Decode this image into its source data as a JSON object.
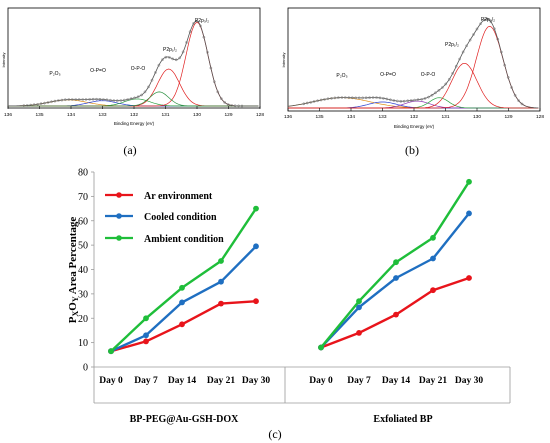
{
  "panels": {
    "a": {
      "label": "(a)",
      "xlabel": "Binding Energy (eV)",
      "ylabel": "Intensity",
      "xticks": [
        "136",
        "135",
        "134",
        "133",
        "132",
        "131",
        "130",
        "129",
        "128"
      ],
      "peak_labels": [
        "P₂O₅",
        "O-P=O",
        "O-P-O",
        "P2p₁/₂",
        "P2p₃/₂"
      ]
    },
    "b": {
      "label": "(b)",
      "xlabel": "Binding Energy (eV)",
      "ylabel": "Intensity",
      "xticks": [
        "136",
        "135",
        "134",
        "133",
        "132",
        "131",
        "130",
        "129",
        "128"
      ],
      "peak_labels": [
        "P₂O₅",
        "O-P=O",
        "O-P-O",
        "P2p₁/₂",
        "P2p₃/₂"
      ]
    },
    "c": {
      "label": "(c)"
    }
  },
  "chart_data": [
    {
      "type": "line",
      "title": "(c)",
      "ylabel": "PxOy Area Percentage",
      "ylim": [
        0,
        80
      ],
      "yticks": [
        "0",
        "10",
        "20",
        "30",
        "40",
        "50",
        "60",
        "70",
        "80"
      ],
      "categories": [
        "Day 0",
        "Day 7",
        "Day 14",
        "Day 21",
        "Day 30"
      ],
      "groups": [
        "BP-PEG@Au-GSH-DOX",
        "Exfoliated BP"
      ],
      "legend_position": "top-left",
      "grid": false,
      "colors": {
        "Ar environment": "#e8141b",
        "Cooled condition": "#1f6fc1",
        "Ambient condition": "#1fbe3a"
      },
      "series": [
        {
          "name": "Ar environment",
          "group": "BP-PEG@Au-GSH-DOX",
          "values": [
            6.5,
            10.5,
            17.5,
            26,
            27
          ]
        },
        {
          "name": "Cooled condition",
          "group": "BP-PEG@Au-GSH-DOX",
          "values": [
            6.5,
            13,
            26.5,
            35,
            49.5
          ]
        },
        {
          "name": "Ambient condition",
          "group": "BP-PEG@Au-GSH-DOX",
          "values": [
            6.5,
            20,
            32.5,
            43.5,
            65
          ]
        },
        {
          "name": "Ar environment",
          "group": "Exfoliated BP",
          "values": [
            8,
            14,
            21.5,
            31.5,
            36.5
          ]
        },
        {
          "name": "Cooled condition",
          "group": "Exfoliated BP",
          "values": [
            8,
            24.5,
            36.5,
            44.5,
            63
          ]
        },
        {
          "name": "Ambient condition",
          "group": "Exfoliated BP",
          "values": [
            8,
            27,
            43,
            53,
            76
          ]
        }
      ]
    }
  ]
}
